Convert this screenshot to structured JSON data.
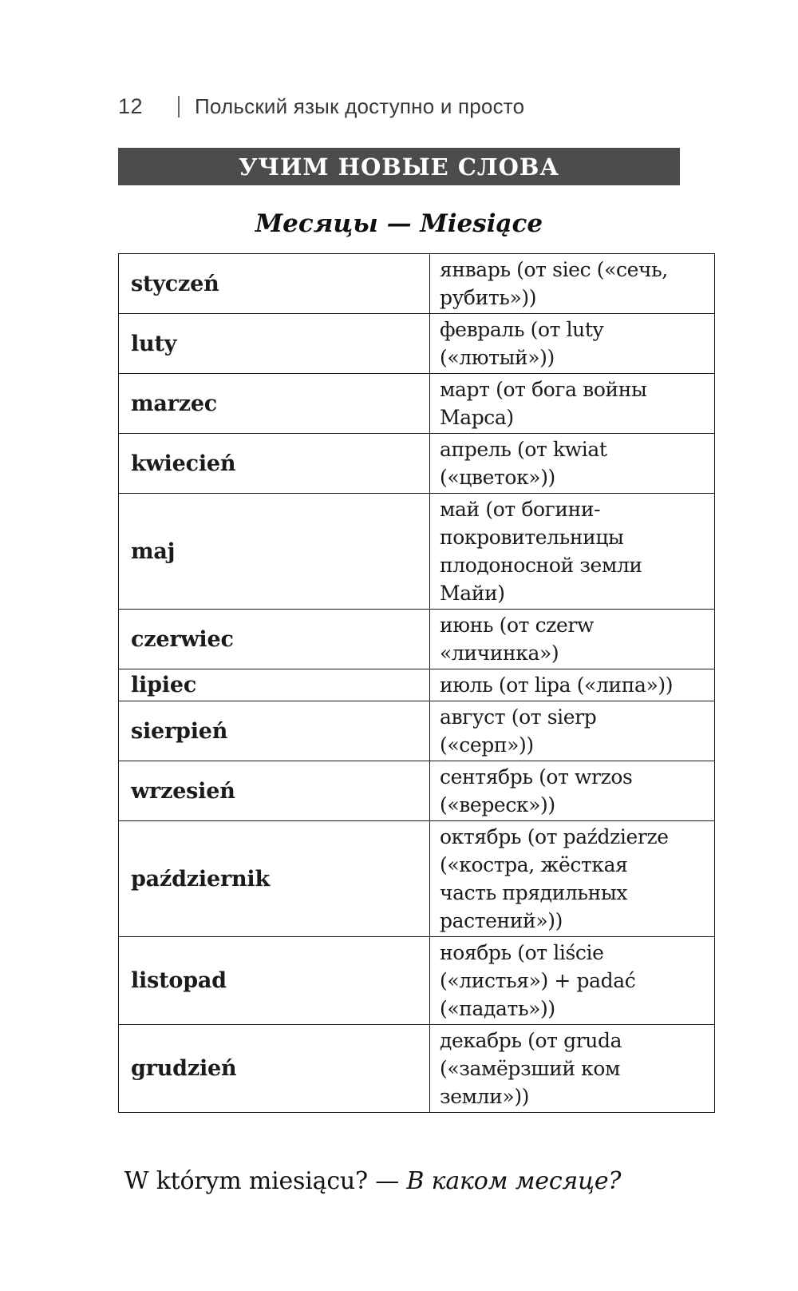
{
  "header": {
    "page_number": "12",
    "book_title": "Польский язык доступно и просто"
  },
  "banner": {
    "title": "УЧИМ НОВЫЕ СЛОВА"
  },
  "section": {
    "title": "Месяцы — Miesiące"
  },
  "table": {
    "rows": [
      {
        "pl": "styczeń",
        "ru": "январь (от siec («сечь,\nрубить»))"
      },
      {
        "pl": "luty",
        "ru": "февраль (от luty\n(«лютый»))"
      },
      {
        "pl": "marzec",
        "ru": "март (от бога войны\nМарса)"
      },
      {
        "pl": "kwiecień",
        "ru": "апрель (от kwiat\n(«цветок»))"
      },
      {
        "pl": "maj",
        "ru": "май (от богини-\nпокровительницы\nплодоносной земли\nМайи)"
      },
      {
        "pl": "czerwiec",
        "ru": "июнь (от czerw\n«личинка»)"
      },
      {
        "pl": "lipiec",
        "ru": "июль (от lipa («липа»))"
      },
      {
        "pl": "sierpień",
        "ru": "август (от sierp\n(«серп»))"
      },
      {
        "pl": "wrzesień",
        "ru": "сентябрь (от wrzos\n(«вереск»))"
      },
      {
        "pl": "październik",
        "ru": "октябрь (от paździerze\n(«костра, жёсткая\nчасть прядильных\nрастений»))"
      },
      {
        "pl": "listopad",
        "ru": "ноябрь (от liście\n(«листья») + padać\n(«падать»))"
      },
      {
        "pl": "grudzień",
        "ru": "декабрь (от gruda\n(«замёрзший ком\nземли»))"
      }
    ]
  },
  "footer": {
    "question_pl": "W którym miesiącu? — ",
    "question_ru": "В каком месяце?"
  },
  "colors": {
    "banner_bg": "#4c4c4e",
    "banner_text": "#ffffff",
    "body_text": "#1b1b1b",
    "table_border": "#1a1a1a"
  }
}
